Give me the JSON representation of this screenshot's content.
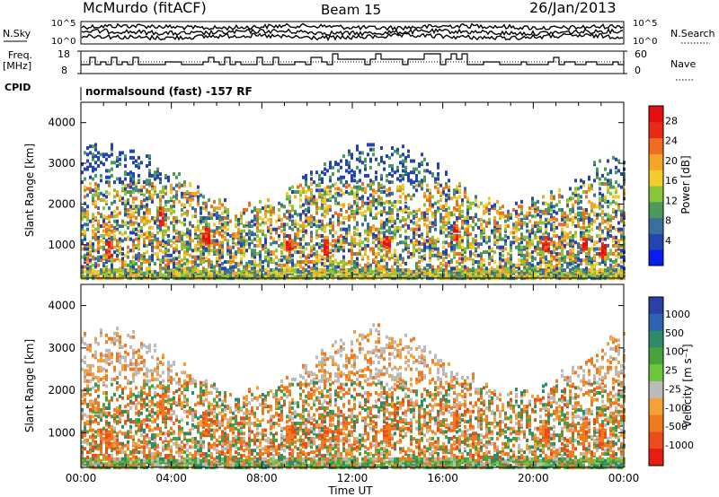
{
  "header": {
    "station": "McMurdo (fitACF)",
    "beam": "Beam 15",
    "date": "26/Jan/2013"
  },
  "side_labels": {
    "nsky": "N.Sky",
    "nsky_exp_hi": "10^5",
    "nsky_exp_lo": "10^0",
    "nsearch": "N.Search",
    "nsearch_exp_hi": "10^5",
    "nsearch_exp_lo": "10^0",
    "freq_line1": "Freq.",
    "freq_line2": "[MHz]",
    "freq_tick_hi": "18",
    "freq_tick_lo": "8",
    "nave": "Nave",
    "nave_tick_hi": "60",
    "nave_tick_lo": "0",
    "cpid": "CPID",
    "cpid_value": "normalsound (fast) -157 RF"
  },
  "chart_data": [
    {
      "type": "heatmap",
      "name": "power",
      "ylabel": "Slant Range [km]",
      "ylim": [
        180,
        4500
      ],
      "yticks": [
        "1000",
        "2000",
        "3000",
        "4000"
      ],
      "xlim_hours": [
        0,
        24
      ],
      "colorbar_label": "Power [dB]",
      "colorbar_ticks": [
        "4",
        "8",
        "12",
        "16",
        "20",
        "24",
        "28"
      ],
      "colorbar_colors": [
        "#0a1cf0",
        "#2445b0",
        "#3b6fa0",
        "#4c9a5a",
        "#8ac43a",
        "#f3cb2a",
        "#f3a527",
        "#ee6d1e",
        "#e82b17",
        "#e60f0f"
      ],
      "hotspots": [
        {
          "hour": 1.2,
          "range_km": 900,
          "level": "high"
        },
        {
          "hour": 3.5,
          "range_km": 1700,
          "level": "high"
        },
        {
          "hour": 5.5,
          "range_km": 1200,
          "level": "high"
        },
        {
          "hour": 9.2,
          "range_km": 1000,
          "level": "high"
        },
        {
          "hour": 10.8,
          "range_km": 950,
          "level": "high"
        },
        {
          "hour": 13.5,
          "range_km": 1050,
          "level": "high"
        },
        {
          "hour": 16.5,
          "range_km": 1300,
          "level": "high"
        },
        {
          "hour": 20.5,
          "range_km": 1000,
          "level": "high"
        },
        {
          "hour": 22.2,
          "range_km": 1000,
          "level": "high"
        },
        {
          "hour": 23.0,
          "range_km": 900,
          "level": "high"
        }
      ]
    },
    {
      "type": "heatmap",
      "name": "velocity",
      "ylabel": "Slant Range [km]",
      "ylim": [
        180,
        4500
      ],
      "yticks": [
        "1000",
        "2000",
        "3000",
        "4000"
      ],
      "xlabel": "Time UT",
      "xticks": [
        "00:00",
        "04:00",
        "08:00",
        "12:00",
        "16:00",
        "20:00",
        "00:00"
      ],
      "colorbar_label": "Velocity [m s⁻¹]",
      "colorbar_ticks": [
        "1000",
        "500",
        "100",
        "25",
        "-25",
        "-100",
        "-500",
        "-1000"
      ],
      "colorbar_colors": [
        "#2a3fa8",
        "#2d63b4",
        "#2f8a6a",
        "#47a33d",
        "#6cc73c",
        "#bbbbbb",
        "#f5a13a",
        "#f07a1d",
        "#e94e1a",
        "#e61d12"
      ]
    },
    {
      "type": "line",
      "name": "frequency",
      "ylim": [
        8,
        18
      ],
      "xlim_hours": [
        0,
        24
      ]
    },
    {
      "type": "line",
      "name": "nave",
      "ylim": [
        0,
        60
      ],
      "xlim_hours": [
        0,
        24
      ]
    }
  ]
}
